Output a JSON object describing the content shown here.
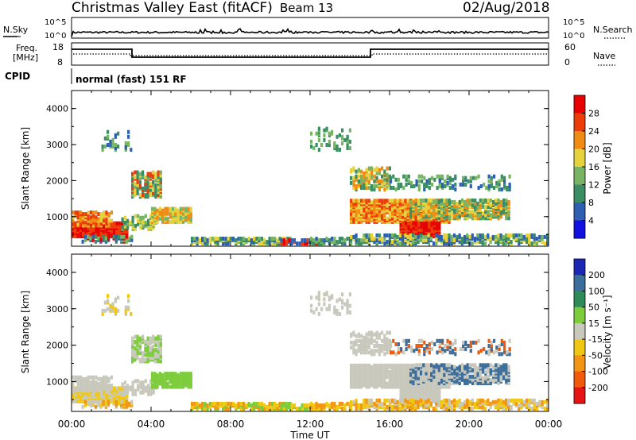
{
  "header": {
    "title": "Christmas Valley East (fitACF)",
    "beam": "Beam 13",
    "date": "02/Aug/2018"
  },
  "noise_panel": {
    "left_label": "N.Sky",
    "right_label": "N.Search",
    "tick_top": "10^5",
    "tick_bottom": "10^0"
  },
  "freq_panel": {
    "left_label_line1": "Freq.",
    "left_label_line2": "[MHz]",
    "right_label": "Nave",
    "left_ticks": [
      "18",
      "8"
    ],
    "right_ticks": [
      "60",
      "0"
    ]
  },
  "cpid": {
    "label": "CPID",
    "value": "normal (fast) 151 RF"
  },
  "chart_data": [
    {
      "type": "heatmap",
      "name": "power-panel",
      "ylabel": "Slant Range [km]",
      "yticks": [
        "1000",
        "2000",
        "3000",
        "4000"
      ],
      "ylim": [
        180,
        4500
      ],
      "colorbar_label": "Power [dB]",
      "colorbar_ticks": [
        "4",
        "8",
        "12",
        "16",
        "20",
        "24",
        "28"
      ],
      "colors": [
        "#1010e0",
        "#2f5fb0",
        "#3c8c64",
        "#78b464",
        "#e6d23c",
        "#f08c14",
        "#ec3c0a",
        "#e60000"
      ]
    },
    {
      "type": "heatmap",
      "name": "velocity-panel",
      "ylabel": "Slant Range [km]",
      "yticks": [
        "1000",
        "2000",
        "3000",
        "4000"
      ],
      "ylim": [
        180,
        4500
      ],
      "colorbar_label": "Velocity [m s⁻¹]",
      "colorbar_ticks": [
        "200",
        "100",
        "50",
        "15",
        "-15",
        "-50",
        "-100",
        "-200"
      ],
      "colors": [
        "#1c28b4",
        "#3c6e9c",
        "#2e8c5a",
        "#7ccc3c",
        "#c8c8bc",
        "#f0c814",
        "#f09614",
        "#f05a0a",
        "#e61414"
      ]
    }
  ],
  "xaxis": {
    "label": "Time UT",
    "ticks": [
      "00:00",
      "04:00",
      "08:00",
      "12:00",
      "16:00",
      "20:00",
      "00:00"
    ]
  }
}
